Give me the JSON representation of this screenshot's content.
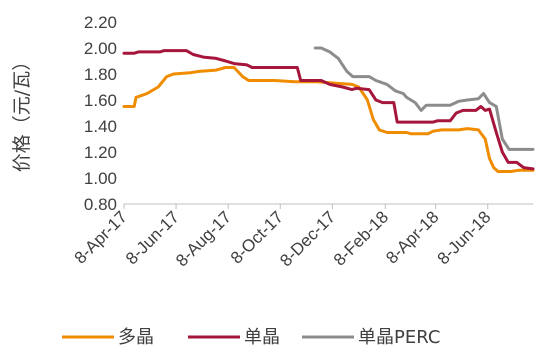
{
  "chart_data": {
    "type": "line",
    "title": "",
    "xlabel": "",
    "ylabel": "价格（元/瓦）",
    "ylim": [
      0.8,
      2.2
    ],
    "yticks": [
      0.8,
      1.0,
      1.2,
      1.4,
      1.6,
      1.8,
      2.0,
      2.2
    ],
    "ytick_labels": [
      "0.80",
      "1.00",
      "1.20",
      "1.40",
      "1.60",
      "1.80",
      "2.00",
      "2.20"
    ],
    "xlim": [
      "2017-04-08",
      "2018-07-31"
    ],
    "xticks": [
      "2017-04-08",
      "2017-06-08",
      "2017-08-08",
      "2017-10-08",
      "2017-12-08",
      "2018-02-08",
      "2018-04-08",
      "2018-06-08"
    ],
    "xtick_labels": [
      "8-Apr-17",
      "8-Jun-17",
      "8-Aug-17",
      "8-Oct-17",
      "8-Dec-17",
      "8-Feb-18",
      "8-Apr-18",
      "8-Jun-18"
    ],
    "grid": false,
    "legend_position": "bottom",
    "series": [
      {
        "name": "多晶",
        "color": "#F08C00",
        "points": [
          [
            "2017-04-08",
            1.55
          ],
          [
            "2017-04-20",
            1.55
          ],
          [
            "2017-04-22",
            1.62
          ],
          [
            "2017-05-05",
            1.65
          ],
          [
            "2017-05-18",
            1.7
          ],
          [
            "2017-05-28",
            1.78
          ],
          [
            "2017-06-05",
            1.8
          ],
          [
            "2017-06-25",
            1.81
          ],
          [
            "2017-07-05",
            1.82
          ],
          [
            "2017-07-25",
            1.83
          ],
          [
            "2017-08-05",
            1.85
          ],
          [
            "2017-08-15",
            1.85
          ],
          [
            "2017-08-25",
            1.78
          ],
          [
            "2017-09-01",
            1.75
          ],
          [
            "2017-10-01",
            1.75
          ],
          [
            "2017-10-25",
            1.74
          ],
          [
            "2017-11-20",
            1.74
          ],
          [
            "2017-12-10",
            1.73
          ],
          [
            "2017-12-31",
            1.72
          ],
          [
            "2018-01-08",
            1.7
          ],
          [
            "2018-01-18",
            1.6
          ],
          [
            "2018-01-25",
            1.45
          ],
          [
            "2018-02-01",
            1.37
          ],
          [
            "2018-02-10",
            1.35
          ],
          [
            "2018-03-05",
            1.35
          ],
          [
            "2018-03-10",
            1.34
          ],
          [
            "2018-03-30",
            1.34
          ],
          [
            "2018-04-05",
            1.36
          ],
          [
            "2018-04-15",
            1.37
          ],
          [
            "2018-05-05",
            1.37
          ],
          [
            "2018-05-15",
            1.38
          ],
          [
            "2018-05-28",
            1.37
          ],
          [
            "2018-06-05",
            1.3
          ],
          [
            "2018-06-10",
            1.15
          ],
          [
            "2018-06-15",
            1.08
          ],
          [
            "2018-06-20",
            1.05
          ],
          [
            "2018-07-05",
            1.05
          ],
          [
            "2018-07-15",
            1.06
          ],
          [
            "2018-07-31",
            1.06
          ]
        ]
      },
      {
        "name": "单晶",
        "color": "#A6163C",
        "points": [
          [
            "2017-04-08",
            1.96
          ],
          [
            "2017-04-20",
            1.96
          ],
          [
            "2017-04-25",
            1.97
          ],
          [
            "2017-05-20",
            1.97
          ],
          [
            "2017-05-25",
            1.98
          ],
          [
            "2017-06-20",
            1.98
          ],
          [
            "2017-06-28",
            1.95
          ],
          [
            "2017-07-10",
            1.93
          ],
          [
            "2017-07-25",
            1.92
          ],
          [
            "2017-08-05",
            1.9
          ],
          [
            "2017-08-15",
            1.88
          ],
          [
            "2017-08-30",
            1.87
          ],
          [
            "2017-09-05",
            1.85
          ],
          [
            "2017-10-28",
            1.85
          ],
          [
            "2017-11-01",
            1.75
          ],
          [
            "2017-11-25",
            1.75
          ],
          [
            "2017-12-05",
            1.72
          ],
          [
            "2017-12-20",
            1.7
          ],
          [
            "2017-12-31",
            1.68
          ],
          [
            "2018-01-05",
            1.69
          ],
          [
            "2018-01-20",
            1.68
          ],
          [
            "2018-01-28",
            1.6
          ],
          [
            "2018-02-05",
            1.58
          ],
          [
            "2018-02-18",
            1.58
          ],
          [
            "2018-02-22",
            1.43
          ],
          [
            "2018-04-05",
            1.43
          ],
          [
            "2018-04-10",
            1.44
          ],
          [
            "2018-04-25",
            1.44
          ],
          [
            "2018-05-02",
            1.5
          ],
          [
            "2018-05-10",
            1.52
          ],
          [
            "2018-05-25",
            1.52
          ],
          [
            "2018-05-31",
            1.55
          ],
          [
            "2018-06-05",
            1.52
          ],
          [
            "2018-06-10",
            1.53
          ],
          [
            "2018-06-18",
            1.35
          ],
          [
            "2018-06-25",
            1.2
          ],
          [
            "2018-07-02",
            1.12
          ],
          [
            "2018-07-12",
            1.12
          ],
          [
            "2018-07-20",
            1.08
          ],
          [
            "2018-07-31",
            1.07
          ]
        ]
      },
      {
        "name": "单晶PERC",
        "color": "#8C8C8C",
        "points": [
          [
            "2017-11-18",
            2.0
          ],
          [
            "2017-11-25",
            2.0
          ],
          [
            "2017-12-05",
            1.97
          ],
          [
            "2017-12-15",
            1.92
          ],
          [
            "2017-12-25",
            1.82
          ],
          [
            "2018-01-01",
            1.78
          ],
          [
            "2018-01-20",
            1.78
          ],
          [
            "2018-01-28",
            1.75
          ],
          [
            "2018-02-10",
            1.72
          ],
          [
            "2018-02-20",
            1.67
          ],
          [
            "2018-03-01",
            1.65
          ],
          [
            "2018-03-05",
            1.62
          ],
          [
            "2018-03-15",
            1.58
          ],
          [
            "2018-03-22",
            1.52
          ],
          [
            "2018-03-28",
            1.56
          ],
          [
            "2018-04-25",
            1.56
          ],
          [
            "2018-05-05",
            1.59
          ],
          [
            "2018-05-15",
            1.6
          ],
          [
            "2018-05-28",
            1.61
          ],
          [
            "2018-06-03",
            1.65
          ],
          [
            "2018-06-10",
            1.58
          ],
          [
            "2018-06-18",
            1.55
          ],
          [
            "2018-06-25",
            1.3
          ],
          [
            "2018-07-03",
            1.22
          ],
          [
            "2018-07-31",
            1.22
          ]
        ]
      }
    ]
  }
}
